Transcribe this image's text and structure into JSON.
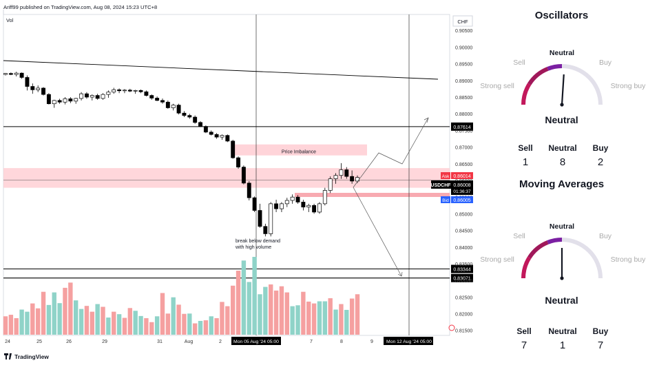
{
  "header": {
    "published_text": "Ariff99 published on TradingView.com, Aug 08, 2024 15:23 UTC+8"
  },
  "footer": {
    "logo_text": "TradingView"
  },
  "chart_data": {
    "type": "candlestick",
    "indicator_label": "Vol",
    "currency": "CHF",
    "ylim": [
      0.8135,
      0.9098
    ],
    "y_ticks": [
      "0.90500",
      "0.90000",
      "0.89500",
      "0.89000",
      "0.88500",
      "0.88000",
      "0.87500",
      "0.87000",
      "0.86500",
      "0.86000",
      "0.85500",
      "0.85000",
      "0.84500",
      "0.84000",
      "0.83500",
      "0.83000",
      "0.82500",
      "0.82000",
      "0.81500"
    ],
    "x_ticks": [
      "24",
      "25",
      "26",
      "29",
      "31",
      "Aug",
      "2",
      "7",
      "8",
      "9"
    ],
    "x_cursor_labels": [
      "Mon 05 Aug '24   05:00",
      "Mon 12 Aug '24   05:00"
    ],
    "candles": [
      [
        0.8918,
        0.8922,
        0.8915,
        0.8921
      ],
      [
        0.8921,
        0.8924,
        0.8916,
        0.8918
      ],
      [
        0.8918,
        0.8926,
        0.8912,
        0.8922
      ],
      [
        0.8922,
        0.8924,
        0.8905,
        0.8909
      ],
      [
        0.8909,
        0.8915,
        0.887,
        0.8882
      ],
      [
        0.8882,
        0.8891,
        0.886,
        0.8872
      ],
      [
        0.8872,
        0.8885,
        0.8865,
        0.8877
      ],
      [
        0.8877,
        0.888,
        0.8855,
        0.8858
      ],
      [
        0.8858,
        0.8862,
        0.8828,
        0.883
      ],
      [
        0.883,
        0.8842,
        0.8818,
        0.884
      ],
      [
        0.884,
        0.8845,
        0.883,
        0.8835
      ],
      [
        0.8835,
        0.885,
        0.8828,
        0.8845
      ],
      [
        0.8845,
        0.885,
        0.8832,
        0.8838
      ],
      [
        0.8838,
        0.8848,
        0.883,
        0.8846
      ],
      [
        0.8846,
        0.8865,
        0.884,
        0.886
      ],
      [
        0.886,
        0.8865,
        0.8845,
        0.885
      ],
      [
        0.885,
        0.8858,
        0.884,
        0.8855
      ],
      [
        0.8855,
        0.886,
        0.8842,
        0.8846
      ],
      [
        0.8846,
        0.8862,
        0.8842,
        0.8858
      ],
      [
        0.8858,
        0.887,
        0.8848,
        0.8865
      ],
      [
        0.8865,
        0.8878,
        0.886,
        0.8872
      ],
      [
        0.8872,
        0.8876,
        0.8862,
        0.8869
      ],
      [
        0.8869,
        0.8874,
        0.8862,
        0.8871
      ],
      [
        0.8871,
        0.8875,
        0.8865,
        0.8868
      ],
      [
        0.8868,
        0.8872,
        0.886,
        0.887
      ],
      [
        0.887,
        0.8873,
        0.8862,
        0.8866
      ],
      [
        0.8866,
        0.887,
        0.8852,
        0.8855
      ],
      [
        0.8855,
        0.8858,
        0.8842,
        0.8847
      ],
      [
        0.8847,
        0.8852,
        0.8838,
        0.884
      ],
      [
        0.884,
        0.8846,
        0.883,
        0.8835
      ],
      [
        0.8835,
        0.884,
        0.8815,
        0.8818
      ],
      [
        0.8818,
        0.883,
        0.881,
        0.8826
      ],
      [
        0.8826,
        0.883,
        0.8798,
        0.8802
      ],
      [
        0.8802,
        0.8808,
        0.879,
        0.8795
      ],
      [
        0.8795,
        0.88,
        0.8785,
        0.879
      ],
      [
        0.879,
        0.8795,
        0.877,
        0.8774
      ],
      [
        0.8774,
        0.8778,
        0.876,
        0.8762
      ],
      [
        0.8762,
        0.8765,
        0.8742,
        0.8745
      ],
      [
        0.8745,
        0.875,
        0.8735,
        0.8738
      ],
      [
        0.8738,
        0.8742,
        0.8725,
        0.873
      ],
      [
        0.873,
        0.8738,
        0.8722,
        0.8735
      ],
      [
        0.8735,
        0.8738,
        0.8715,
        0.8718
      ],
      [
        0.8718,
        0.8722,
        0.8665,
        0.8668
      ],
      [
        0.8668,
        0.8672,
        0.8635,
        0.864
      ],
      [
        0.864,
        0.8645,
        0.8588,
        0.8592
      ],
      [
        0.8592,
        0.8598,
        0.854,
        0.8548
      ],
      [
        0.8548,
        0.8552,
        0.8505,
        0.851
      ],
      [
        0.851,
        0.853,
        0.8458,
        0.8462
      ],
      [
        0.8462,
        0.847,
        0.8432,
        0.844
      ],
      [
        0.844,
        0.8535,
        0.8432,
        0.853
      ],
      [
        0.853,
        0.8542,
        0.8505,
        0.8515
      ],
      [
        0.8515,
        0.8535,
        0.8505,
        0.853
      ],
      [
        0.853,
        0.8548,
        0.852,
        0.854
      ],
      [
        0.854,
        0.8558,
        0.853,
        0.855
      ],
      [
        0.855,
        0.8556,
        0.853,
        0.8535
      ],
      [
        0.8535,
        0.8542,
        0.851,
        0.852
      ],
      [
        0.852,
        0.853,
        0.8505,
        0.8525
      ],
      [
        0.8525,
        0.853,
        0.85,
        0.8505
      ],
      [
        0.8505,
        0.8535,
        0.85,
        0.853
      ],
      [
        0.853,
        0.8578,
        0.8525,
        0.857
      ],
      [
        0.857,
        0.8612,
        0.8562,
        0.8605
      ],
      [
        0.8605,
        0.8622,
        0.859,
        0.8615
      ],
      [
        0.8615,
        0.8652,
        0.8605,
        0.8632
      ],
      [
        0.8632,
        0.864,
        0.8605,
        0.8612
      ],
      [
        0.8612,
        0.863,
        0.859,
        0.8598
      ],
      [
        0.8598,
        0.8615,
        0.8592,
        0.8609
      ]
    ],
    "volumes": [
      [
        6.0,
        "down"
      ],
      [
        6.5,
        "down"
      ],
      [
        5.4,
        "down"
      ],
      [
        8.2,
        "up"
      ],
      [
        7.5,
        "up"
      ],
      [
        10.2,
        "down"
      ],
      [
        8.6,
        "down"
      ],
      [
        14.0,
        "down"
      ],
      [
        9.7,
        "up"
      ],
      [
        13.8,
        "up"
      ],
      [
        10.3,
        "up"
      ],
      [
        15.3,
        "down"
      ],
      [
        17.0,
        "down"
      ],
      [
        11.2,
        "up"
      ],
      [
        8.4,
        "up"
      ],
      [
        9.4,
        "down"
      ],
      [
        7.5,
        "down"
      ],
      [
        10.0,
        "up"
      ],
      [
        9.1,
        "down"
      ],
      [
        5.6,
        "up"
      ],
      [
        7.5,
        "down"
      ],
      [
        6.7,
        "up"
      ],
      [
        5.5,
        "down"
      ],
      [
        8.7,
        "down"
      ],
      [
        7.8,
        "up"
      ],
      [
        6.1,
        "up"
      ],
      [
        5.4,
        "down"
      ],
      [
        4.1,
        "down"
      ],
      [
        6.0,
        "up"
      ],
      [
        13.6,
        "down"
      ],
      [
        6.9,
        "down"
      ],
      [
        12.2,
        "up"
      ],
      [
        9.8,
        "down"
      ],
      [
        6.8,
        "down"
      ],
      [
        6.9,
        "up"
      ],
      [
        3.7,
        "down"
      ],
      [
        4.5,
        "up"
      ],
      [
        4.7,
        "down"
      ],
      [
        6.0,
        "up"
      ],
      [
        5.4,
        "down"
      ],
      [
        10.7,
        "down"
      ],
      [
        9.3,
        "down"
      ],
      [
        16.0,
        "down"
      ],
      [
        20.9,
        "down"
      ],
      [
        24.2,
        "up"
      ],
      [
        17.2,
        "up"
      ],
      [
        25.4,
        "up"
      ],
      [
        13.2,
        "up"
      ],
      [
        15.6,
        "up"
      ],
      [
        16.4,
        "down"
      ],
      [
        14.4,
        "down"
      ],
      [
        15.8,
        "down"
      ],
      [
        13.8,
        "down"
      ],
      [
        9.3,
        "up"
      ],
      [
        9.6,
        "up"
      ],
      [
        14.0,
        "down"
      ],
      [
        10.8,
        "down"
      ],
      [
        10.2,
        "down"
      ],
      [
        10.9,
        "up"
      ],
      [
        10.9,
        "up"
      ],
      [
        11.9,
        "down"
      ],
      [
        8.2,
        "up"
      ],
      [
        10.0,
        "down"
      ],
      [
        8.1,
        "up"
      ],
      [
        11.8,
        "down"
      ],
      [
        13.2,
        "down"
      ]
    ],
    "horizontal_levels": [
      "0.87614",
      "0.83344",
      "0.83071"
    ],
    "last_price": {
      "symbol": "USDCHF",
      "price": "0.86008",
      "countdown": "01:36:37"
    },
    "ask": {
      "label": "Ask",
      "price": "0.86014"
    },
    "bid": {
      "label": "Bid",
      "price": "0.86005"
    },
    "zones": [
      {
        "label": "Price Imbalance",
        "y_top": 0.8708,
        "y_bottom": 0.8675
      },
      {
        "label": "",
        "y_top": 0.8637,
        "y_bottom": 0.8578
      }
    ],
    "annotations": [
      "break below demand",
      "with high volume"
    ]
  },
  "oscillators": {
    "title": "Oscillators",
    "verdict": "Neutral",
    "scale": [
      "Strong sell",
      "Sell",
      "Neutral",
      "Buy",
      "Strong buy"
    ],
    "needle_value": 0.52,
    "counts": [
      {
        "label": "Sell",
        "value": "1"
      },
      {
        "label": "Neutral",
        "value": "8"
      },
      {
        "label": "Buy",
        "value": "2"
      }
    ]
  },
  "moving_averages": {
    "title": "Moving Averages",
    "verdict": "Neutral",
    "scale": [
      "Strong sell",
      "Sell",
      "Neutral",
      "Buy",
      "Strong buy"
    ],
    "needle_value": 0.5,
    "counts": [
      {
        "label": "Sell",
        "value": "7"
      },
      {
        "label": "Neutral",
        "value": "1"
      },
      {
        "label": "Buy",
        "value": "7"
      }
    ]
  },
  "colors": {
    "bullish": "#ffffff",
    "bearish": "#000000",
    "vol_up": "#8fd3c8",
    "vol_down": "#f5a0a0",
    "zone": "#ffcdd2",
    "ask": "#f23645",
    "bid": "#2962ff",
    "gauge_sell": "#c2185b",
    "gauge_neutral": "#7b1fa2"
  }
}
